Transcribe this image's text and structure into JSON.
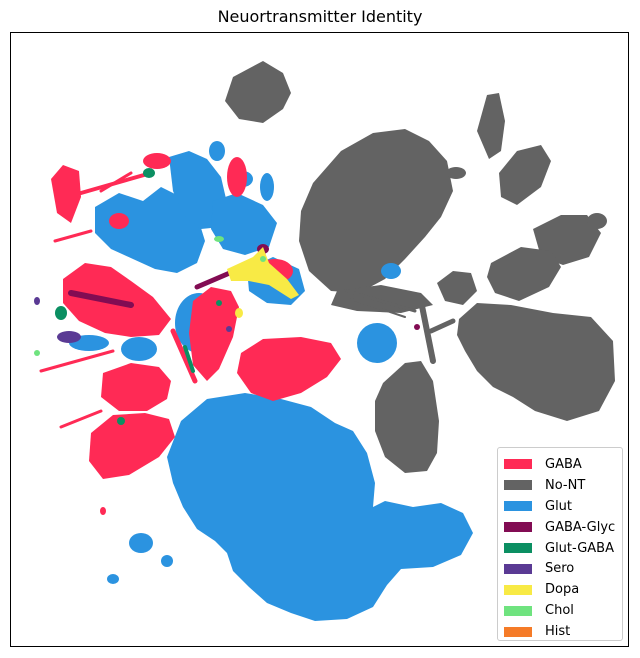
{
  "chart_data": {
    "type": "scatter",
    "title": "Neuortransmitter Identity",
    "xlabel": "",
    "ylabel": "",
    "axes_ticks": false,
    "grid": false,
    "legend_position": "lower-right",
    "series": [
      {
        "name": "GABA",
        "color": "#ff2a55"
      },
      {
        "name": "No-NT",
        "color": "#636363"
      },
      {
        "name": "Glut",
        "color": "#2b93e0"
      },
      {
        "name": "GABA-Glyc",
        "color": "#820c53"
      },
      {
        "name": "Glut-GABA",
        "color": "#0b8f62"
      },
      {
        "name": "Sero",
        "color": "#5a3a94"
      },
      {
        "name": "Dopa",
        "color": "#f8ea45"
      },
      {
        "name": "Chol",
        "color": "#6fe37f"
      },
      {
        "name": "Hist",
        "color": "#f57b28"
      }
    ]
  }
}
